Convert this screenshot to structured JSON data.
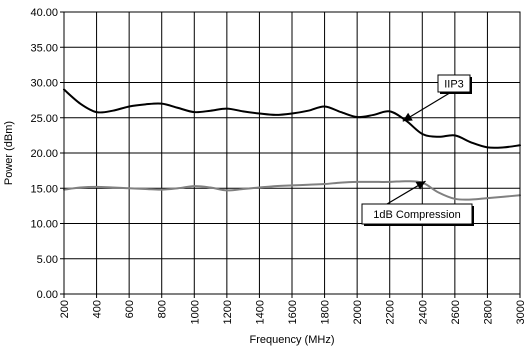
{
  "chart_data": {
    "type": "line",
    "title": "",
    "xlabel": "Frequency (MHz)",
    "ylabel": "Power (dBm)",
    "xlim": [
      200,
      3000
    ],
    "ylim": [
      0,
      40
    ],
    "x_ticks": [
      200,
      400,
      600,
      800,
      1000,
      1200,
      1400,
      1600,
      1800,
      2000,
      2200,
      2400,
      2600,
      2800,
      3000
    ],
    "x_tick_labels": [
      "200",
      "400",
      "600",
      "800",
      "1000",
      "1200",
      "1400",
      "1600",
      "1800",
      "2000",
      "2200",
      "2400",
      "2600",
      "2800",
      "3000"
    ],
    "y_ticks": [
      0,
      5,
      10,
      15,
      20,
      25,
      30,
      35,
      40
    ],
    "y_tick_labels": [
      "0.00",
      "5.00",
      "10.00",
      "15.00",
      "20.00",
      "25.00",
      "30.00",
      "35.00",
      "40.00"
    ],
    "grid": true,
    "legend": "none",
    "series": [
      {
        "name": "IIP3",
        "color": "#000000",
        "x": [
          200,
          300,
          400,
          500,
          600,
          700,
          800,
          900,
          1000,
          1100,
          1200,
          1300,
          1400,
          1500,
          1600,
          1700,
          1800,
          1900,
          2000,
          2100,
          2200,
          2300,
          2400,
          2500,
          2600,
          2700,
          2800,
          2900,
          3000
        ],
        "y": [
          29.0,
          27.0,
          25.8,
          26.0,
          26.6,
          26.9,
          27.0,
          26.4,
          25.8,
          26.0,
          26.3,
          25.9,
          25.6,
          25.4,
          25.6,
          26.0,
          26.6,
          25.8,
          25.1,
          25.4,
          25.9,
          24.6,
          22.7,
          22.3,
          22.5,
          21.5,
          20.8,
          20.8,
          21.1
        ]
      },
      {
        "name": "1dB Compression",
        "color": "#808080",
        "x": [
          200,
          300,
          400,
          500,
          600,
          700,
          800,
          900,
          1000,
          1100,
          1200,
          1300,
          1400,
          1500,
          1600,
          1700,
          1800,
          1900,
          2000,
          2100,
          2200,
          2300,
          2400,
          2500,
          2600,
          2700,
          2800,
          2900,
          3000
        ],
        "y": [
          14.8,
          15.1,
          15.2,
          15.1,
          15.0,
          14.9,
          14.8,
          15.0,
          15.3,
          15.1,
          14.7,
          14.9,
          15.1,
          15.3,
          15.4,
          15.5,
          15.6,
          15.8,
          15.9,
          15.9,
          15.9,
          16.0,
          15.8,
          14.4,
          13.5,
          13.4,
          13.6,
          13.8,
          14.0
        ]
      }
    ],
    "annotations": [
      {
        "text": "IIP3",
        "series": "IIP3",
        "arrow_to_x": 2280,
        "arrow_to_y": 24.5
      },
      {
        "text": "1dB Compression",
        "series": "1dB Compression",
        "arrow_to_x": 2420,
        "arrow_to_y": 16.0
      }
    ]
  }
}
